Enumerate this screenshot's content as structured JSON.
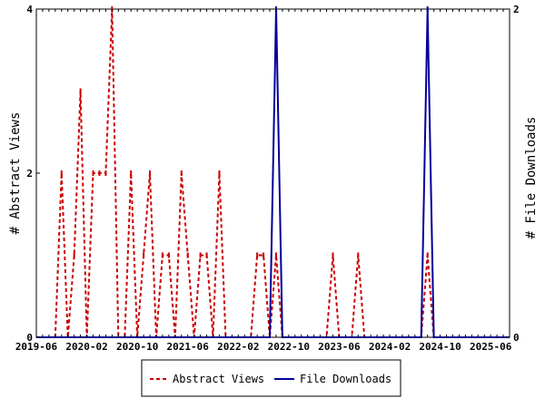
{
  "chart_data": {
    "type": "line",
    "left_axis": {
      "label": "# Abstract Views",
      "range": [
        0,
        4
      ],
      "ticks": [
        "0",
        "2",
        "4"
      ]
    },
    "right_axis": {
      "label": "# File Downloads",
      "range": [
        0,
        2
      ],
      "ticks": [
        "0",
        "2"
      ]
    },
    "x_axis": {
      "range_months": [
        "2019-06",
        "2025-09"
      ],
      "tick_labels": [
        "2019-06",
        "2020-02",
        "2020-10",
        "2021-06",
        "2022-02",
        "2022-10",
        "2023-06",
        "2024-02",
        "2024-10",
        "2025-06"
      ]
    },
    "grid": false,
    "legend_position": "bottom",
    "series": [
      {
        "name": "Abstract Views",
        "axis": "left",
        "color": "#cc0000",
        "style": "dashed",
        "x": [
          "2019-06",
          "2019-07",
          "2019-08",
          "2019-09",
          "2019-10",
          "2019-11",
          "2019-12",
          "2020-01",
          "2020-02",
          "2020-03",
          "2020-04",
          "2020-05",
          "2020-06",
          "2020-07",
          "2020-08",
          "2020-09",
          "2020-10",
          "2020-11",
          "2020-12",
          "2021-01",
          "2021-02",
          "2021-03",
          "2021-04",
          "2021-05",
          "2021-06",
          "2021-07",
          "2021-08",
          "2021-09",
          "2021-10",
          "2021-11",
          "2021-12",
          "2022-01",
          "2022-02",
          "2022-03",
          "2022-04",
          "2022-05",
          "2022-06",
          "2022-07",
          "2022-08",
          "2022-09",
          "2022-10",
          "2022-11",
          "2022-12",
          "2023-01",
          "2023-02",
          "2023-03",
          "2023-04",
          "2023-05",
          "2023-06",
          "2023-07",
          "2023-08",
          "2023-09",
          "2023-10",
          "2023-11",
          "2023-12",
          "2024-01",
          "2024-02",
          "2024-03",
          "2024-04",
          "2024-05",
          "2024-06",
          "2024-07",
          "2024-08",
          "2024-09",
          "2024-10",
          "2024-11",
          "2024-12",
          "2025-01",
          "2025-02",
          "2025-03",
          "2025-04",
          "2025-05",
          "2025-06",
          "2025-07",
          "2025-08",
          "2025-09"
        ],
        "values": [
          0,
          0,
          0,
          0,
          2,
          0,
          1,
          3,
          0,
          2,
          2,
          2,
          4,
          0,
          0,
          2,
          0,
          1,
          2,
          0,
          1,
          1,
          0,
          2,
          1,
          0,
          1,
          1,
          0,
          2,
          0,
          0,
          0,
          0,
          0,
          1,
          1,
          0,
          1,
          0,
          0,
          0,
          0,
          0,
          0,
          0,
          0,
          1,
          0,
          0,
          0,
          1,
          0,
          0,
          0,
          0,
          0,
          0,
          0,
          0,
          0,
          0,
          1,
          0,
          0,
          0,
          0,
          0,
          0,
          0,
          0,
          0,
          0,
          0,
          0,
          0
        ]
      },
      {
        "name": "File Downloads",
        "axis": "right",
        "color": "#000099",
        "style": "solid",
        "x": [
          "2019-06",
          "2022-07",
          "2022-08",
          "2022-09",
          "2024-07",
          "2024-08",
          "2024-09",
          "2025-09"
        ],
        "values": [
          0,
          0,
          2,
          0,
          0,
          2,
          0,
          0
        ]
      }
    ]
  }
}
